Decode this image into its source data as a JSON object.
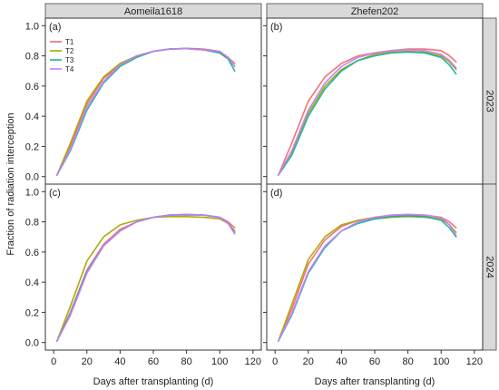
{
  "figure": {
    "ylabel": "Fraction of radiation interception",
    "xlabel": "Days after transplanting (d)",
    "columns": [
      "Aomeila1618",
      "Zhefen202"
    ],
    "rows": [
      "2023",
      "2024"
    ],
    "colors": {
      "strip_fill": "#d9d9d9",
      "strip_border": "#444444",
      "axis": "#333333"
    }
  },
  "legend": [
    {
      "label": "T1",
      "color": "#f26b6b"
    },
    {
      "label": "T2",
      "color": "#a6a600"
    },
    {
      "label": "T3",
      "color": "#16b59a"
    },
    {
      "label": "T4",
      "color": "#c77cff"
    }
  ],
  "chart_data": [
    {
      "type": "line",
      "panel_label": "(a)",
      "column": "Aomeila1618",
      "row": "2023",
      "xlim": [
        -5,
        125
      ],
      "ylim": [
        -0.05,
        1.05
      ],
      "xticks": [
        0,
        20,
        40,
        60,
        80,
        100,
        120
      ],
      "yticks": [
        0.0,
        0.2,
        0.4,
        0.6,
        0.8,
        1.0
      ],
      "x": [
        2,
        10,
        20,
        30,
        40,
        50,
        60,
        70,
        80,
        90,
        100,
        105,
        109
      ],
      "series": [
        {
          "name": "T1",
          "values": [
            0.01,
            0.2,
            0.48,
            0.65,
            0.74,
            0.8,
            0.83,
            0.845,
            0.85,
            0.845,
            0.83,
            0.79,
            0.75
          ]
        },
        {
          "name": "T2",
          "values": [
            0.01,
            0.22,
            0.5,
            0.66,
            0.75,
            0.8,
            0.83,
            0.845,
            0.848,
            0.84,
            0.82,
            0.78,
            0.73
          ]
        },
        {
          "name": "T3",
          "values": [
            0.01,
            0.17,
            0.44,
            0.62,
            0.73,
            0.79,
            0.83,
            0.845,
            0.848,
            0.84,
            0.82,
            0.78,
            0.7
          ]
        },
        {
          "name": "T4",
          "values": [
            0.01,
            0.18,
            0.46,
            0.63,
            0.74,
            0.8,
            0.83,
            0.845,
            0.848,
            0.84,
            0.83,
            0.79,
            0.73
          ]
        }
      ]
    },
    {
      "type": "line",
      "panel_label": "(b)",
      "column": "Zhefen202",
      "row": "2023",
      "xlim": [
        -5,
        125
      ],
      "ylim": [
        -0.05,
        1.05
      ],
      "xticks": [
        0,
        20,
        40,
        60,
        80,
        100,
        120
      ],
      "yticks": [
        0.0,
        0.2,
        0.4,
        0.6,
        0.8,
        1.0
      ],
      "x": [
        2,
        10,
        20,
        30,
        40,
        50,
        60,
        70,
        80,
        90,
        100,
        105,
        109
      ],
      "series": [
        {
          "name": "T1",
          "values": [
            0.01,
            0.22,
            0.5,
            0.66,
            0.75,
            0.8,
            0.82,
            0.835,
            0.845,
            0.845,
            0.835,
            0.8,
            0.76
          ]
        },
        {
          "name": "T2",
          "values": [
            0.01,
            0.16,
            0.42,
            0.6,
            0.71,
            0.77,
            0.81,
            0.825,
            0.83,
            0.825,
            0.8,
            0.76,
            0.71
          ]
        },
        {
          "name": "T3",
          "values": [
            0.01,
            0.14,
            0.4,
            0.58,
            0.7,
            0.77,
            0.8,
            0.82,
            0.825,
            0.82,
            0.79,
            0.74,
            0.68
          ]
        },
        {
          "name": "T4",
          "values": [
            0.01,
            0.17,
            0.44,
            0.62,
            0.73,
            0.79,
            0.82,
            0.835,
            0.84,
            0.835,
            0.81,
            0.77,
            0.72
          ]
        }
      ]
    },
    {
      "type": "line",
      "panel_label": "(c)",
      "column": "Aomeila1618",
      "row": "2024",
      "xlim": [
        -5,
        125
      ],
      "ylim": [
        -0.05,
        1.05
      ],
      "xticks": [
        0,
        20,
        40,
        60,
        80,
        100,
        120
      ],
      "yticks": [
        0.0,
        0.2,
        0.4,
        0.6,
        0.8,
        1.0
      ],
      "x": [
        2,
        10,
        20,
        30,
        40,
        50,
        60,
        70,
        80,
        90,
        100,
        105,
        109
      ],
      "series": [
        {
          "name": "T1",
          "values": [
            0.01,
            0.2,
            0.48,
            0.65,
            0.75,
            0.8,
            0.83,
            0.845,
            0.845,
            0.845,
            0.83,
            0.8,
            0.76
          ]
        },
        {
          "name": "T2",
          "values": [
            0.01,
            0.24,
            0.54,
            0.7,
            0.78,
            0.81,
            0.83,
            0.835,
            0.835,
            0.83,
            0.82,
            0.79,
            0.74
          ]
        },
        {
          "name": "T3",
          "values": [
            0.01,
            0.19,
            0.47,
            0.64,
            0.74,
            0.8,
            0.83,
            0.845,
            0.848,
            0.845,
            0.83,
            0.79,
            0.73
          ]
        },
        {
          "name": "T4",
          "values": [
            0.01,
            0.18,
            0.46,
            0.64,
            0.74,
            0.8,
            0.83,
            0.845,
            0.85,
            0.845,
            0.83,
            0.79,
            0.72
          ]
        }
      ]
    },
    {
      "type": "line",
      "panel_label": "(d)",
      "column": "Zhefen202",
      "row": "2024",
      "xlim": [
        -5,
        125
      ],
      "ylim": [
        -0.05,
        1.05
      ],
      "xticks": [
        0,
        20,
        40,
        60,
        80,
        100,
        120
      ],
      "yticks": [
        0.0,
        0.2,
        0.4,
        0.6,
        0.8,
        1.0
      ],
      "x": [
        2,
        10,
        20,
        30,
        40,
        50,
        60,
        70,
        80,
        90,
        100,
        105,
        109
      ],
      "series": [
        {
          "name": "T1",
          "values": [
            0.01,
            0.22,
            0.52,
            0.68,
            0.77,
            0.81,
            0.83,
            0.84,
            0.845,
            0.84,
            0.83,
            0.8,
            0.76
          ]
        },
        {
          "name": "T2",
          "values": [
            0.01,
            0.25,
            0.55,
            0.7,
            0.78,
            0.81,
            0.82,
            0.83,
            0.835,
            0.83,
            0.82,
            0.78,
            0.73
          ]
        },
        {
          "name": "T3",
          "values": [
            0.01,
            0.18,
            0.46,
            0.63,
            0.74,
            0.79,
            0.82,
            0.835,
            0.84,
            0.835,
            0.81,
            0.76,
            0.7
          ]
        },
        {
          "name": "T4",
          "values": [
            0.01,
            0.19,
            0.47,
            0.64,
            0.74,
            0.8,
            0.83,
            0.845,
            0.85,
            0.845,
            0.83,
            0.78,
            0.71
          ]
        }
      ]
    }
  ]
}
